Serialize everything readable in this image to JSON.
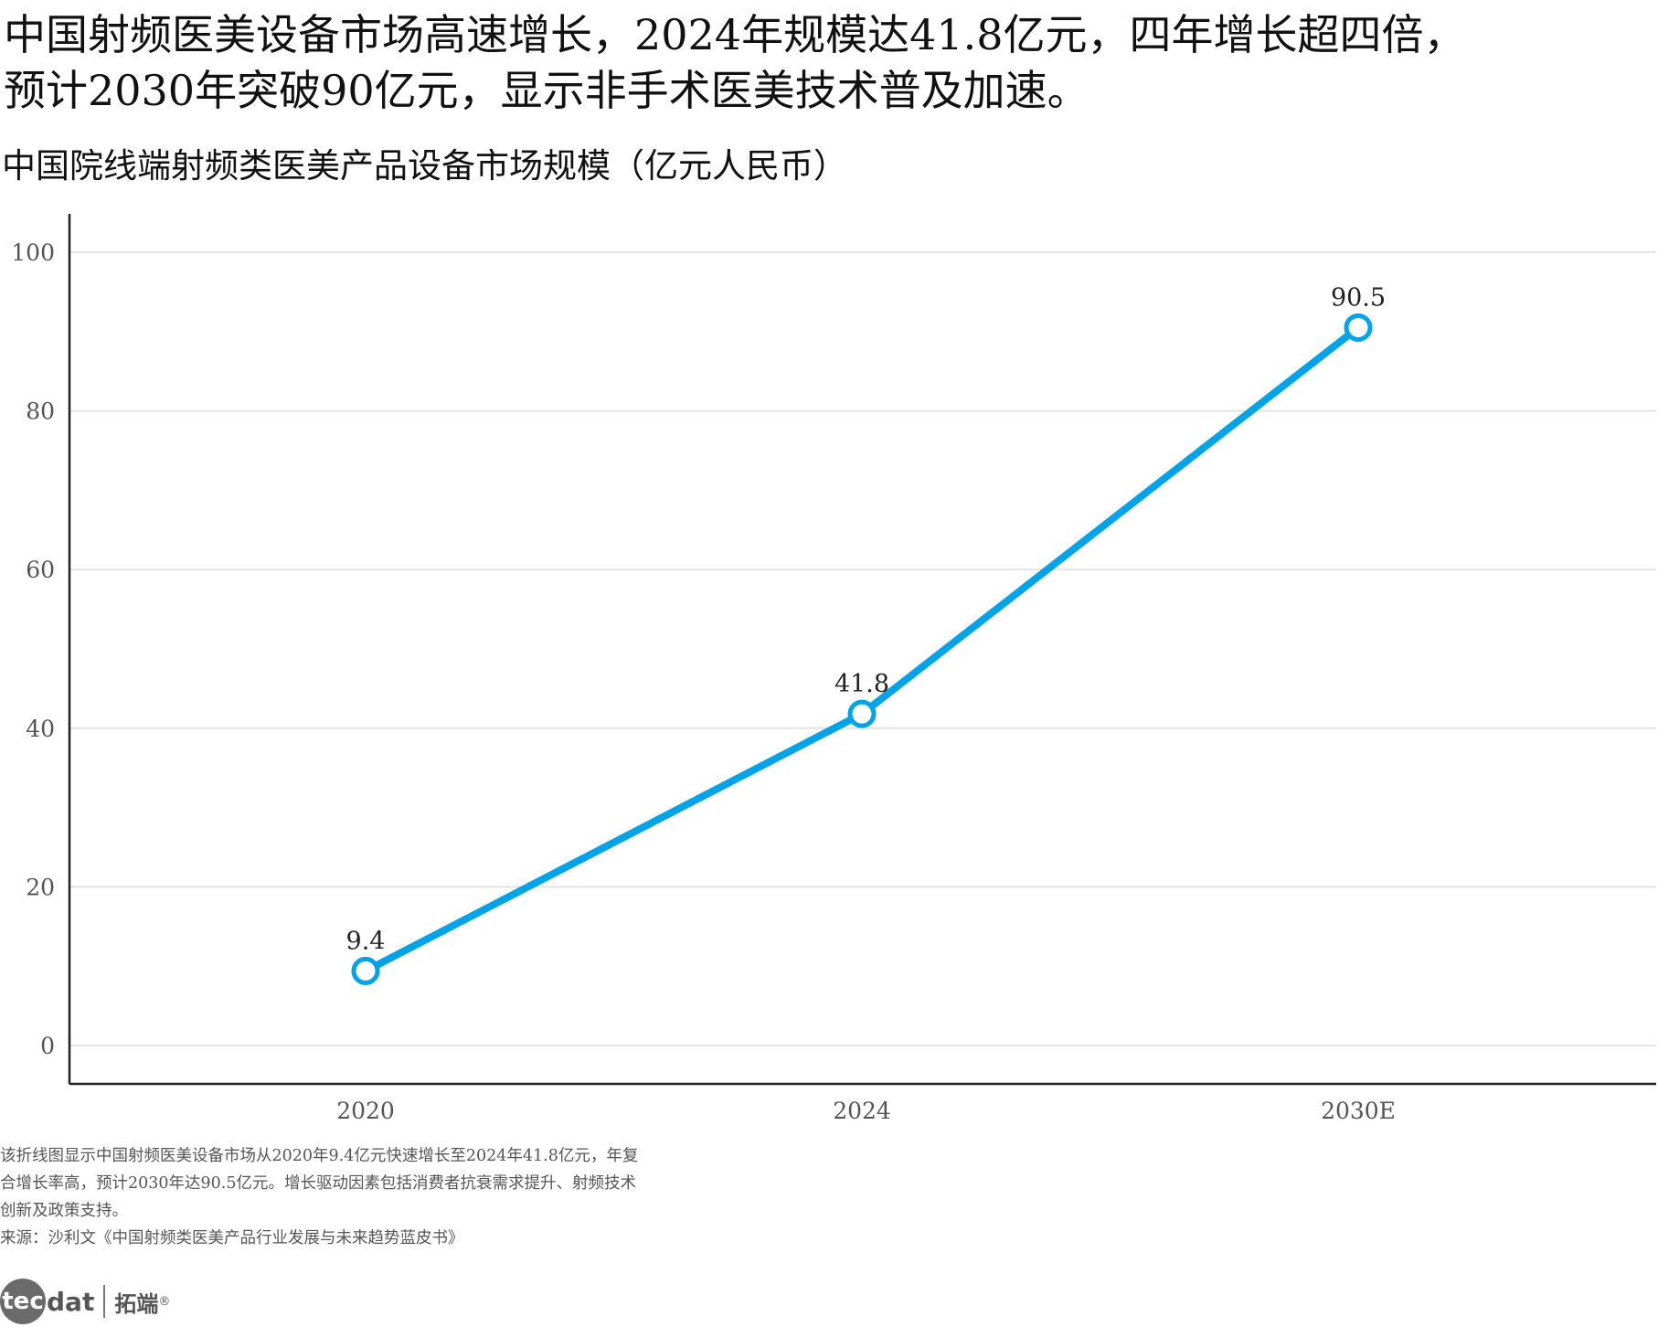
{
  "headline": {
    "line1": "中国射频医美设备市场高速增长，2024年规模达41.8亿元，四年增长超四倍，",
    "line2": "预计2030年突破90亿元，显示非手术医美技术普及加速。"
  },
  "chart_data": {
    "type": "line",
    "title": "中国院线端射频类医美产品设备市场规模（亿元人民币）",
    "xlabel": "",
    "ylabel": "",
    "categories": [
      "2020",
      "2024",
      "2030E"
    ],
    "series": [
      {
        "values": [
          9.4,
          41.8,
          90.5
        ],
        "data_labels": [
          "9.4",
          "41.8",
          "90.5"
        ]
      }
    ],
    "ylim": [
      0,
      100
    ],
    "yticks": [
      0,
      20,
      40,
      60,
      80,
      100
    ],
    "ytick_labels": [
      "0",
      "20",
      "40",
      "60",
      "80",
      "100"
    ],
    "grid": "horizontal",
    "line_color": "#00a2e8",
    "marker": "hollow-circle"
  },
  "note": "该折线图显示中国射频医美设备市场从2020年9.4亿元快速增长至2024年41.8亿元，年复合增长率高，预计2030年达90.5亿元。增长驱动因素包括消费者抗衰需求提升、射频技术创新及政策支持。",
  "source": "来源：沙利文《中国射频类医美产品行业发展与未来趋势蓝皮书》",
  "brand": {
    "logo_initial": "tec",
    "logo_rest": "dat",
    "chinese_name": "拓端",
    "registered_mark": "®"
  }
}
